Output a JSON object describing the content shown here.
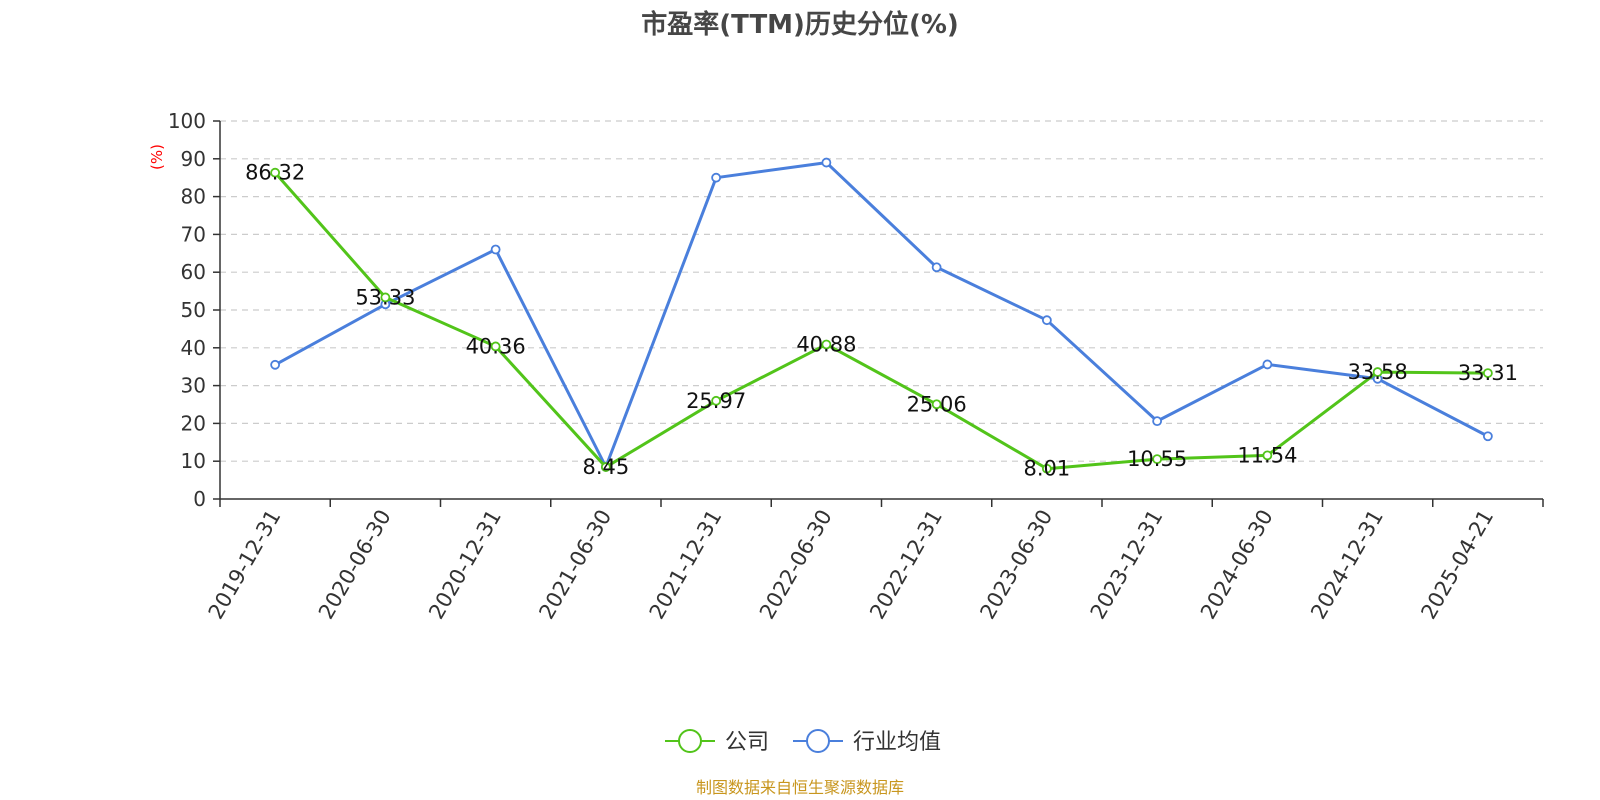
{
  "chart_data": {
    "type": "line",
    "title": "市盈率(TTM)历史分位(%)",
    "ylabel": "(%)",
    "ylim": [
      0,
      100
    ],
    "yticks": [
      "0",
      "10",
      "20",
      "30",
      "40",
      "50",
      "60",
      "70",
      "80",
      "90",
      "100"
    ],
    "categories": [
      "2019-12-31",
      "2020-06-30",
      "2020-12-31",
      "2021-06-30",
      "2021-12-31",
      "2022-06-30",
      "2022-12-31",
      "2023-06-30",
      "2023-12-31",
      "2024-06-30",
      "2024-12-31",
      "2025-04-21"
    ],
    "grid": true,
    "legend_position": "bottom",
    "series": [
      {
        "name": "公司",
        "color": "#52c41a",
        "values": [
          86.32,
          53.33,
          40.36,
          8.45,
          25.97,
          40.88,
          25.06,
          8.01,
          10.55,
          11.54,
          33.58,
          33.31
        ],
        "labels": [
          "86.32",
          "53.33",
          "40.36",
          "8.45",
          "25.97",
          "40.88",
          "25.06",
          "8.01",
          "10.55",
          "11.54",
          "33.58",
          "33.31"
        ]
      },
      {
        "name": "行业均值",
        "color": "#4a7fdc",
        "values": [
          35.5,
          51.5,
          66,
          8.5,
          85,
          89,
          61.3,
          47.3,
          20.6,
          35.6,
          31.8,
          16.6
        ]
      }
    ]
  },
  "source": "制图数据来自恒生聚源数据库"
}
